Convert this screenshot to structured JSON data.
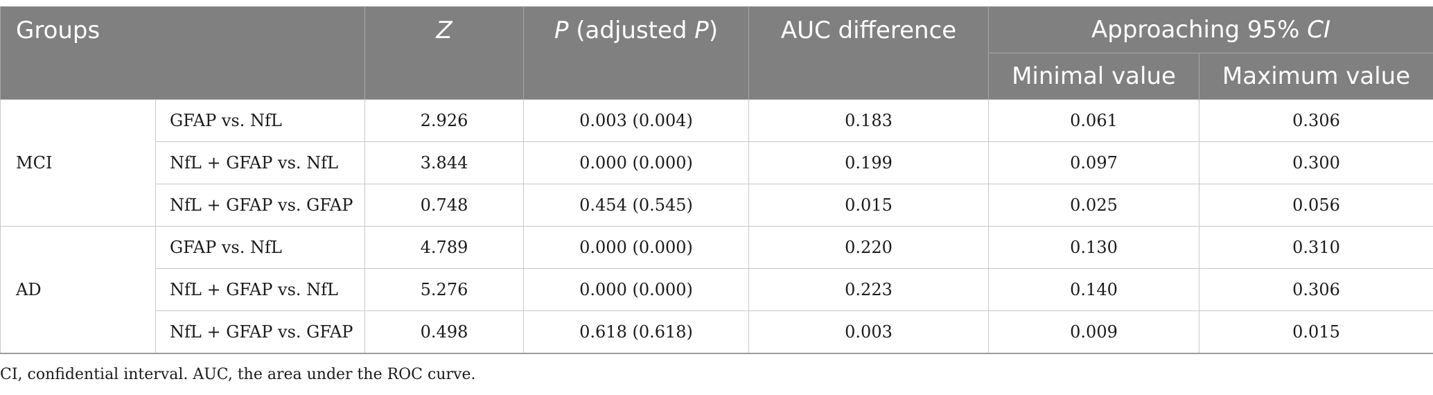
{
  "header": {
    "groups": "Groups",
    "z": "Z",
    "p_main": "P",
    "p_mid": " (adjusted ",
    "p_end": "P",
    "p_close": ")",
    "auc_diff": "AUC difference",
    "ci_main": "Approaching 95% ",
    "ci_italic": "CI",
    "min_value": "Minimal value",
    "max_value": "Maximum value"
  },
  "groups": [
    {
      "name": "MCI",
      "rows": [
        {
          "comparison": "GFAP vs. NfL",
          "z": "2.926",
          "p": "0.003 (0.004)",
          "auc_diff": "0.183",
          "min": "0.061",
          "max": "0.306"
        },
        {
          "comparison": "NfL + GFAP vs. NfL",
          "z": "3.844",
          "p": "0.000 (0.000)",
          "auc_diff": "0.199",
          "min": "0.097",
          "max": "0.300"
        },
        {
          "comparison": "NfL + GFAP vs. GFAP",
          "z": "0.748",
          "p": "0.454 (0.545)",
          "auc_diff": "0.015",
          "min": "0.025",
          "max": "0.056"
        }
      ]
    },
    {
      "name": "AD",
      "rows": [
        {
          "comparison": "GFAP vs. NfL",
          "z": "4.789",
          "p": "0.000 (0.000)",
          "auc_diff": "0.220",
          "min": "0.130",
          "max": "0.310"
        },
        {
          "comparison": "NfL + GFAP vs. NfL",
          "z": "5.276",
          "p": "0.000 (0.000)",
          "auc_diff": "0.223",
          "min": "0.140",
          "max": "0.306"
        },
        {
          "comparison": "NfL + GFAP vs. GFAP",
          "z": "0.498",
          "p": "0.618 (0.618)",
          "auc_diff": "0.003",
          "min": "0.009",
          "max": "0.015"
        }
      ]
    }
  ],
  "footnote": "CI, confidential interval. AUC, the area under the ROC curve.",
  "colors": {
    "header_bg": "#808080",
    "header_text": "#ffffff",
    "body_text": "#1a1a1a",
    "rule": "#c8c8c8"
  }
}
